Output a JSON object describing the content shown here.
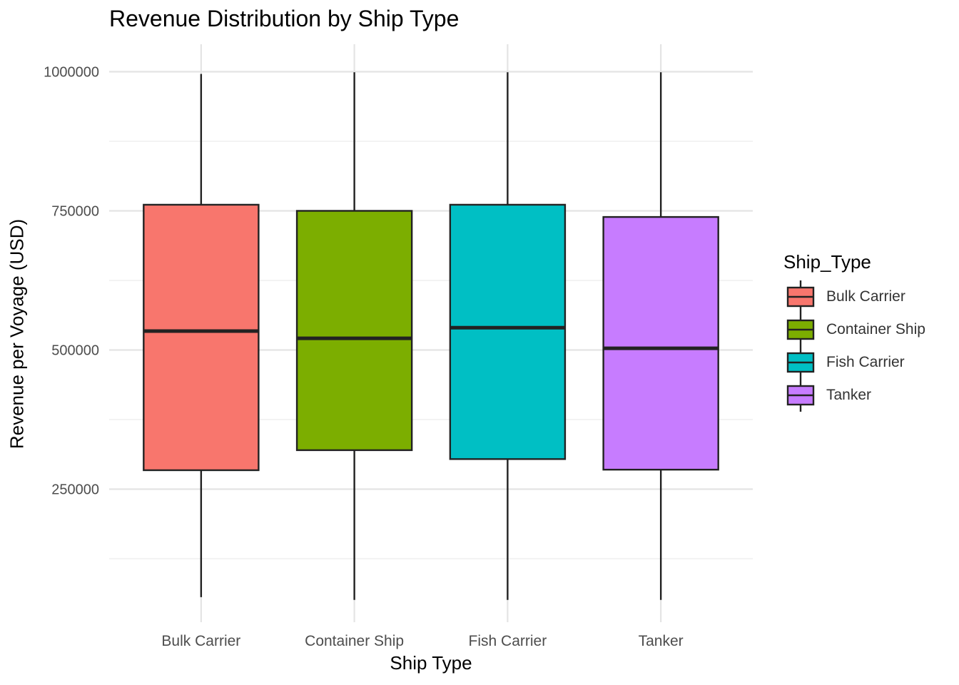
{
  "chart_data": {
    "type": "boxplot",
    "title": "Revenue Distribution by Ship Type",
    "xlabel": "Ship Type",
    "ylabel": "Revenue per Voyage (USD)",
    "ylim": [
      0,
      1050000
    ],
    "yticks": [
      250000,
      500000,
      750000,
      1000000
    ],
    "ytick_labels": [
      "250000",
      "500000",
      "750000",
      "1000000"
    ],
    "grid": true,
    "legend_title": "Ship_Type",
    "legend_position": "right",
    "categories": [
      "Bulk Carrier",
      "Container Ship",
      "Fish Carrier",
      "Tanker"
    ],
    "colors": [
      "#F8766D",
      "#7CAE00",
      "#00BFC4",
      "#C77CFF"
    ],
    "boxes": [
      {
        "name": "Bulk Carrier",
        "min": 56000,
        "q1": 284000,
        "median": 534000,
        "q3": 761000,
        "max": 996000
      },
      {
        "name": "Container Ship",
        "min": 51000,
        "q1": 320000,
        "median": 521000,
        "q3": 750000,
        "max": 999000
      },
      {
        "name": "Fish Carrier",
        "min": 51000,
        "q1": 304000,
        "median": 540000,
        "q3": 761000,
        "max": 999000
      },
      {
        "name": "Tanker",
        "min": 51000,
        "q1": 285000,
        "median": 503000,
        "q3": 739000,
        "max": 999000
      }
    ]
  }
}
